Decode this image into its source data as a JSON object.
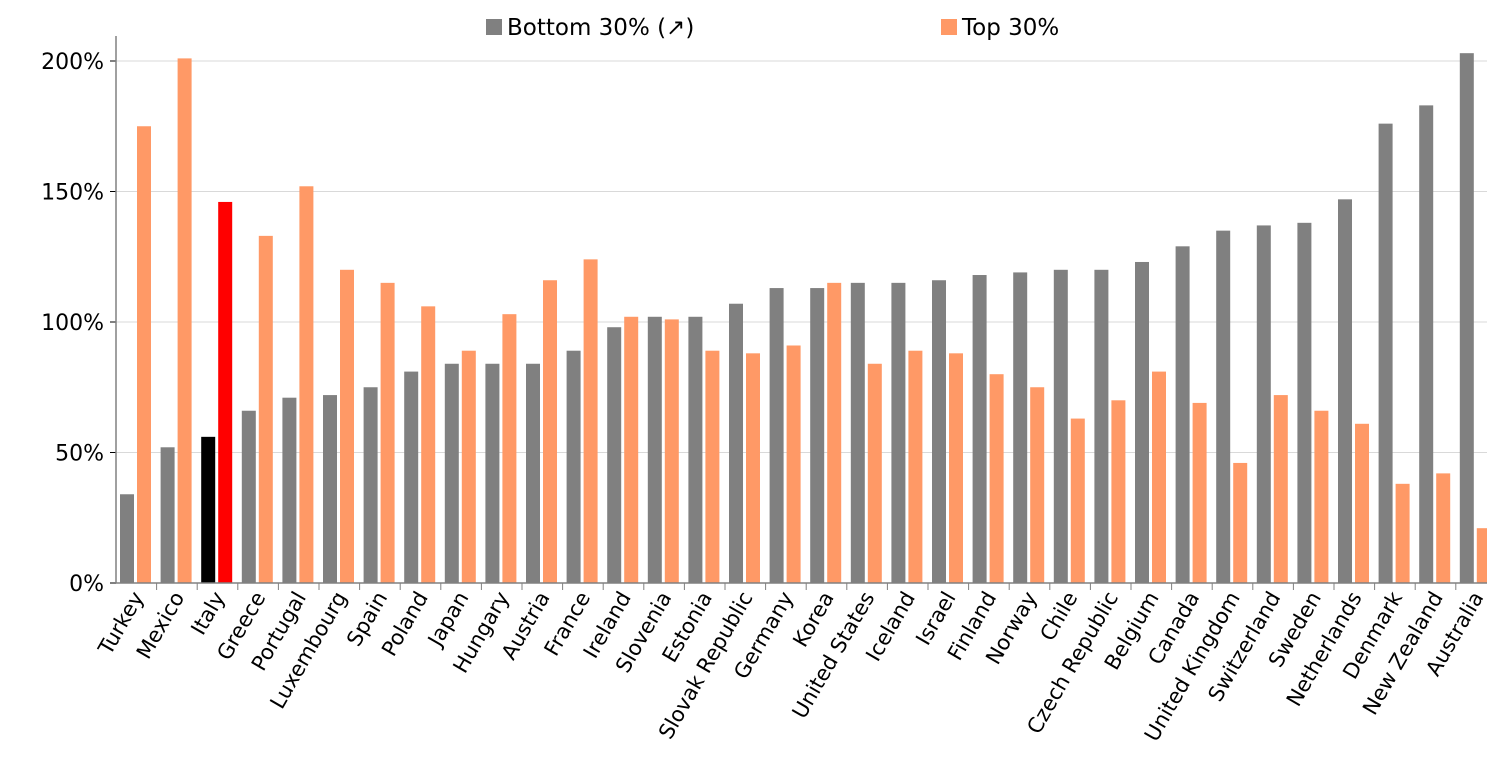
{
  "chart_data": {
    "type": "bar",
    "title": "",
    "xlabel": "",
    "ylabel": "",
    "ylim": [
      0,
      210
    ],
    "yticks": [
      0,
      50,
      100,
      150,
      200
    ],
    "ytick_labels": [
      "0%",
      "50%",
      "100%",
      "150%",
      "200%"
    ],
    "grid": true,
    "legend": "top",
    "categories": [
      "Turkey",
      "Mexico",
      "Italy",
      "Greece",
      "Portugal",
      "Luxembourg",
      "Spain",
      "Poland",
      "Japan",
      "Hungary",
      "Austria",
      "France",
      "Ireland",
      "Slovenia",
      "Estonia",
      "Slovak Republic",
      "Germany",
      "Korea",
      "United States",
      "Iceland",
      "Israel",
      "Finland",
      "Norway",
      "Chile",
      "Czech Republic",
      "Belgium",
      "Canada",
      "United Kingdom",
      "Switzerland",
      "Sweden",
      "Netherlands",
      "Denmark",
      "New Zealand",
      "Australia"
    ],
    "series": [
      {
        "name": "Bottom 30% (↗)",
        "color": "#808080",
        "values": [
          34,
          52,
          56,
          66,
          71,
          72,
          75,
          81,
          84,
          84,
          84,
          89,
          98,
          102,
          102,
          107,
          113,
          113,
          115,
          115,
          116,
          118,
          119,
          120,
          120,
          123,
          129,
          135,
          137,
          138,
          147,
          176,
          183,
          203
        ]
      },
      {
        "name": "Top 30%",
        "color": "#FF9966",
        "values": [
          175,
          201,
          146,
          133,
          152,
          120,
          115,
          106,
          89,
          103,
          116,
          124,
          102,
          101,
          89,
          88,
          91,
          115,
          84,
          89,
          88,
          80,
          75,
          63,
          70,
          81,
          69,
          46,
          72,
          66,
          61,
          38,
          42,
          21
        ]
      }
    ],
    "highlight": {
      "category": "Italy",
      "colors": [
        "#000000",
        "#FF0000"
      ]
    }
  }
}
